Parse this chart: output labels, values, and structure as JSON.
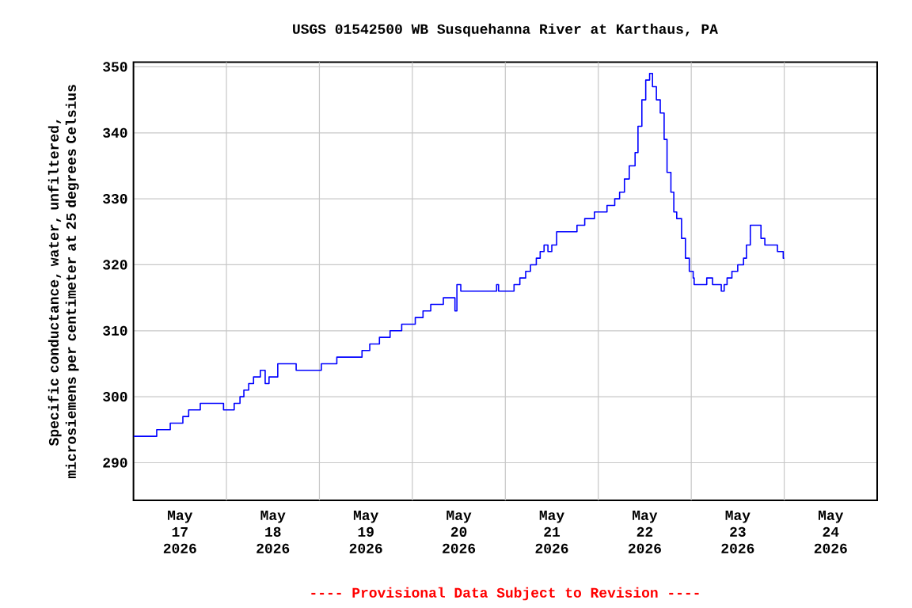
{
  "chart_data": {
    "type": "step",
    "title": "USGS 01542500 WB Susquehanna River at Karthaus, PA",
    "ylabel": "Specific conductance, water, unfiltered, microsiemens per centimeter at 25 degrees Celsius",
    "annotations": [
      "---- Provisional Data Subject to Revision ----"
    ],
    "x": [
      "2026-05-17T00:00",
      "2026-05-17T06:00",
      "2026-05-17T09:30",
      "2026-05-17T12:45",
      "2026-05-17T14:15",
      "2026-05-17T17:15",
      "2026-05-17T23:15",
      "2026-05-18T02:00",
      "2026-05-18T03:30",
      "2026-05-18T04:30",
      "2026-05-18T05:45",
      "2026-05-18T07:00",
      "2026-05-18T08:45",
      "2026-05-18T10:00",
      "2026-05-18T11:00",
      "2026-05-18T13:15",
      "2026-05-18T18:00",
      "2026-05-19T00:30",
      "2026-05-19T04:30",
      "2026-05-19T11:00",
      "2026-05-19T13:00",
      "2026-05-19T15:30",
      "2026-05-19T18:15",
      "2026-05-19T21:15",
      "2026-05-20T00:45",
      "2026-05-20T02:45",
      "2026-05-20T04:45",
      "2026-05-20T08:00",
      "2026-05-20T11:00",
      "2026-05-20T11:30",
      "2026-05-20T12:30",
      "2026-05-20T21:45",
      "2026-05-20T22:15",
      "2026-05-21T02:15",
      "2026-05-21T03:45",
      "2026-05-21T05:15",
      "2026-05-21T06:30",
      "2026-05-21T08:00",
      "2026-05-21T09:00",
      "2026-05-21T10:00",
      "2026-05-21T11:00",
      "2026-05-21T12:00",
      "2026-05-21T13:15",
      "2026-05-21T18:30",
      "2026-05-21T20:30",
      "2026-05-21T23:00",
      "2026-05-22T02:15",
      "2026-05-22T04:15",
      "2026-05-22T05:30",
      "2026-05-22T06:45",
      "2026-05-22T08:00",
      "2026-05-22T09:30",
      "2026-05-22T10:15",
      "2026-05-22T11:15",
      "2026-05-22T12:15",
      "2026-05-22T13:15",
      "2026-05-22T14:00",
      "2026-05-22T15:00",
      "2026-05-22T16:00",
      "2026-05-22T17:00",
      "2026-05-22T17:45",
      "2026-05-22T18:45",
      "2026-05-22T19:30",
      "2026-05-22T20:15",
      "2026-05-22T21:30",
      "2026-05-22T22:30",
      "2026-05-22T23:30",
      "2026-05-23T00:30",
      "2026-05-23T00:45",
      "2026-05-23T04:00",
      "2026-05-23T05:30",
      "2026-05-23T07:45",
      "2026-05-23T08:30",
      "2026-05-23T09:15",
      "2026-05-23T10:30",
      "2026-05-23T12:00",
      "2026-05-23T13:30",
      "2026-05-23T14:15",
      "2026-05-23T15:15",
      "2026-05-23T18:00",
      "2026-05-23T19:00",
      "2026-05-23T22:15",
      "2026-05-23T23:45",
      "2026-05-24T00:00"
    ],
    "series": [
      {
        "color": "#0000ff",
        "values": [
          294,
          295,
          296,
          297,
          298,
          299,
          298,
          299,
          300,
          301,
          302,
          303,
          304,
          302,
          303,
          305,
          304,
          305,
          306,
          307,
          308,
          309,
          310,
          311,
          312,
          313,
          314,
          315,
          313,
          317,
          316,
          317,
          316,
          317,
          318,
          319,
          320,
          321,
          322,
          323,
          322,
          323,
          325,
          326,
          327,
          328,
          329,
          330,
          331,
          333,
          335,
          337,
          341,
          345,
          348,
          349,
          347,
          345,
          343,
          339,
          334,
          331,
          328,
          327,
          324,
          321,
          319,
          318,
          317,
          318,
          317,
          316,
          317,
          318,
          319,
          320,
          321,
          323,
          326,
          324,
          323,
          322,
          321,
          321
        ]
      }
    ],
    "xlim": [
      "2026-05-17T00:00",
      "2026-05-25T00:00"
    ],
    "xticks": [
      {
        "value": "2026-05-17T12:00",
        "label": "May 17 2026"
      },
      {
        "value": "2026-05-18T12:00",
        "label": "May 18 2026"
      },
      {
        "value": "2026-05-19T12:00",
        "label": "May 19 2026"
      },
      {
        "value": "2026-05-20T12:00",
        "label": "May 20 2026"
      },
      {
        "value": "2026-05-21T12:00",
        "label": "May 21 2026"
      },
      {
        "value": "2026-05-22T12:00",
        "label": "May 22 2026"
      },
      {
        "value": "2026-05-23T12:00",
        "label": "May 23 2026"
      },
      {
        "value": "2026-05-24T12:00",
        "label": "May 24 2026"
      },
      {
        "value": "2026-05-18T00:00",
        "label": null
      },
      {
        "value": "2026-05-19T00:00",
        "label": null
      },
      {
        "value": "2026-05-20T00:00",
        "label": null
      },
      {
        "value": "2026-05-21T00:00",
        "label": null
      },
      {
        "value": "2026-05-22T00:00",
        "label": null
      },
      {
        "value": "2026-05-23T00:00",
        "label": null
      },
      {
        "value": "2026-05-24T00:00",
        "label": null
      }
    ],
    "ylim": [
      284.3,
      350.7
    ],
    "yticks": [
      290,
      300,
      310,
      320,
      330,
      340,
      350
    ],
    "grid": true
  }
}
